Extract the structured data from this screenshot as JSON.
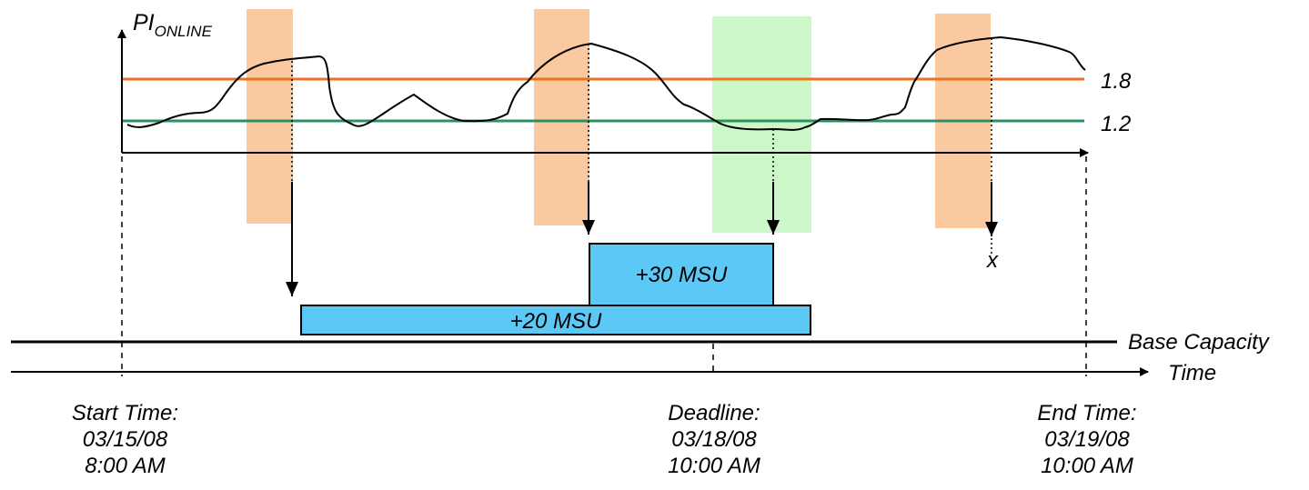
{
  "y_axis": {
    "label_main": "PI",
    "label_sub": "ONLINE"
  },
  "thresholds": [
    {
      "value": "1.8",
      "color": "#f07020"
    },
    {
      "value": "1.2",
      "color": "#2e9060"
    }
  ],
  "capacity_blocks": [
    {
      "label": "+20 MSU",
      "color": "#5bc8f5"
    },
    {
      "label": "+30 MSU",
      "color": "#5bc8f5"
    }
  ],
  "band_colors": {
    "add": "#fac9a0",
    "remove": "#ccf7c8"
  },
  "reject_marker": "x",
  "base_line_label": "Base Capacity",
  "time_axis_label": "Time",
  "events": [
    {
      "title": "Start Time:",
      "date": "03/15/08",
      "time": "8:00 AM"
    },
    {
      "title": "Deadline:",
      "date": "03/18/08",
      "time": "10:00 AM"
    },
    {
      "title": "End Time:",
      "date": "03/19/08",
      "time": "10:00 AM"
    }
  ]
}
